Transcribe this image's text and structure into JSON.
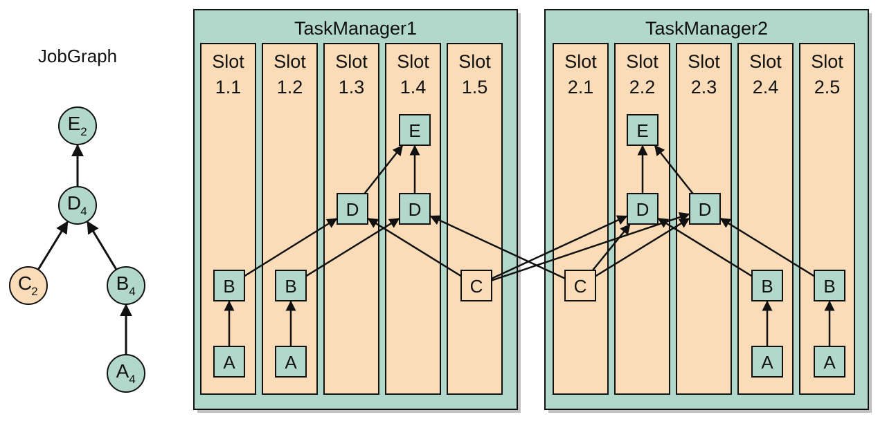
{
  "colors": {
    "teal": "#b2d8cb",
    "peach": "#fbdcb8",
    "stroke": "#111111",
    "shadow": "#c2c2c2"
  },
  "jobgraph": {
    "title": "JobGraph",
    "nodes": [
      {
        "id": "E",
        "label": "E",
        "sub": "2",
        "kind": "teal"
      },
      {
        "id": "D",
        "label": "D",
        "sub": "4",
        "kind": "teal"
      },
      {
        "id": "C",
        "label": "C",
        "sub": "2",
        "kind": "peach"
      },
      {
        "id": "B",
        "label": "B",
        "sub": "4",
        "kind": "teal"
      },
      {
        "id": "A",
        "label": "A",
        "sub": "4",
        "kind": "teal"
      }
    ],
    "edges": [
      [
        "D",
        "E"
      ],
      [
        "C",
        "D"
      ],
      [
        "B",
        "D"
      ],
      [
        "A",
        "B"
      ]
    ]
  },
  "task_managers": [
    {
      "name": "TaskManager1",
      "slots": [
        {
          "line1": "Slot",
          "line2": "1.1"
        },
        {
          "line1": "Slot",
          "line2": "1.2"
        },
        {
          "line1": "Slot",
          "line2": "1.3"
        },
        {
          "line1": "Slot",
          "line2": "1.4"
        },
        {
          "line1": "Slot",
          "line2": "1.5"
        }
      ]
    },
    {
      "name": "TaskManager2",
      "slots": [
        {
          "line1": "Slot",
          "line2": "2.1"
        },
        {
          "line1": "Slot",
          "line2": "2.2"
        },
        {
          "line1": "Slot",
          "line2": "2.3"
        },
        {
          "line1": "Slot",
          "line2": "2.4"
        },
        {
          "line1": "Slot",
          "line2": "2.5"
        }
      ]
    }
  ],
  "tasks": [
    {
      "id": "E1",
      "label": "E",
      "kind": "teal"
    },
    {
      "id": "E2",
      "label": "E",
      "kind": "teal"
    },
    {
      "id": "D1",
      "label": "D",
      "kind": "teal"
    },
    {
      "id": "D2",
      "label": "D",
      "kind": "teal"
    },
    {
      "id": "D3",
      "label": "D",
      "kind": "teal"
    },
    {
      "id": "D4",
      "label": "D",
      "kind": "teal"
    },
    {
      "id": "C1",
      "label": "C",
      "kind": "peach"
    },
    {
      "id": "C2",
      "label": "C",
      "kind": "peach"
    },
    {
      "id": "B1",
      "label": "B",
      "kind": "teal"
    },
    {
      "id": "B2",
      "label": "B",
      "kind": "teal"
    },
    {
      "id": "B3",
      "label": "B",
      "kind": "teal"
    },
    {
      "id": "B4",
      "label": "B",
      "kind": "teal"
    },
    {
      "id": "A1",
      "label": "A",
      "kind": "teal"
    },
    {
      "id": "A2",
      "label": "A",
      "kind": "teal"
    },
    {
      "id": "A3",
      "label": "A",
      "kind": "teal"
    },
    {
      "id": "A4",
      "label": "A",
      "kind": "teal"
    }
  ],
  "connections": [
    [
      "A1",
      "B1"
    ],
    [
      "A2",
      "B2"
    ],
    [
      "A3",
      "B3"
    ],
    [
      "A4",
      "B4"
    ],
    [
      "D1",
      "E1"
    ],
    [
      "D2",
      "E1"
    ],
    [
      "D3",
      "E2"
    ],
    [
      "D4",
      "E2"
    ],
    [
      "B1",
      "D1"
    ],
    [
      "B2",
      "D2"
    ],
    [
      "C1",
      "D3"
    ],
    [
      "C1",
      "D4"
    ],
    [
      "C1",
      "D1"
    ],
    [
      "C2",
      "D2"
    ],
    [
      "C2",
      "D3"
    ],
    [
      "C2",
      "D4"
    ],
    [
      "B3",
      "D3"
    ],
    [
      "B4",
      "D4"
    ]
  ]
}
